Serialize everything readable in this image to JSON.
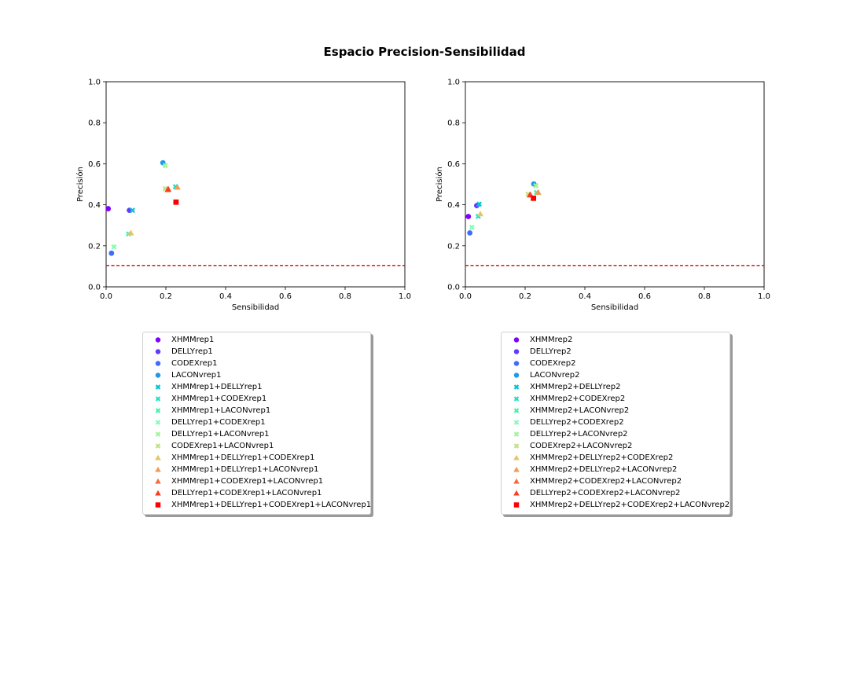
{
  "figure": {
    "title": "Espacio Precision-Sensibilidad"
  },
  "chart_data": [
    {
      "type": "scatter",
      "xlabel": "Sensibilidad",
      "ylabel": "Precisión",
      "xlim": [
        0,
        1
      ],
      "ylim": [
        0,
        1
      ],
      "xticks": [
        "0.0",
        "0.2",
        "0.4",
        "0.6",
        "0.8",
        "1.0"
      ],
      "yticks": [
        "0.0",
        "0.2",
        "0.4",
        "0.6",
        "0.8",
        "1.0"
      ],
      "grid": false,
      "baseline": {
        "y": 0.104,
        "color": "#e00000",
        "style": "dashed"
      },
      "legend_position": "below",
      "series": [
        {
          "name": "XHMMrep1",
          "marker": "circle",
          "color": "#7f00ff",
          "x": 0.007,
          "y": 0.381
        },
        {
          "name": "DELLYrep1",
          "marker": "circle",
          "color": "#5f3cfd",
          "x": 0.078,
          "y": 0.373
        },
        {
          "name": "CODEXrep1",
          "marker": "circle",
          "color": "#3f6df6",
          "x": 0.018,
          "y": 0.164
        },
        {
          "name": "LACONvrep1",
          "marker": "circle",
          "color": "#1f9ae9",
          "x": 0.19,
          "y": 0.605
        },
        {
          "name": "XHMMrep1+DELLYrep1",
          "marker": "x",
          "color": "#00c4d9",
          "x": 0.088,
          "y": 0.373
        },
        {
          "name": "XHMMrep1+CODEXrep1",
          "marker": "x",
          "color": "#22e1c6",
          "x": 0.232,
          "y": 0.488
        },
        {
          "name": "XHMMrep1+LACONvrep1",
          "marker": "x",
          "color": "#40f4ae",
          "x": 0.075,
          "y": 0.258
        },
        {
          "name": "DELLYrep1+CODEXrep1",
          "marker": "x",
          "color": "#80ffb4",
          "x": 0.026,
          "y": 0.195
        },
        {
          "name": "DELLYrep1+LACONvrep1",
          "marker": "x",
          "color": "#9ff59a",
          "x": 0.198,
          "y": 0.591
        },
        {
          "name": "CODEXrep1+LACONvrep1",
          "marker": "x",
          "color": "#c1e281",
          "x": 0.198,
          "y": 0.478
        },
        {
          "name": "XHMMrep1+DELLYrep1+CODEXrep1",
          "marker": "triangle",
          "color": "#e3c56b",
          "x": 0.083,
          "y": 0.263
        },
        {
          "name": "XHMMrep1+DELLYrep1+LACONvrep1",
          "marker": "triangle",
          "color": "#f39b55",
          "x": 0.239,
          "y": 0.486
        },
        {
          "name": "XHMMrep1+CODEXrep1+LACONvrep1",
          "marker": "triangle",
          "color": "#f86b3e",
          "x": 0.206,
          "y": 0.474
        },
        {
          "name": "DELLYrep1+CODEXrep1+LACONvrep1",
          "marker": "triangle",
          "color": "#f93c1f",
          "x": 0.208,
          "y": 0.477
        },
        {
          "name": "XHMMrep1+DELLYrep1+CODEXrep1+LACONvrep1",
          "marker": "square",
          "color": "#ff0000",
          "x": 0.234,
          "y": 0.413
        }
      ]
    },
    {
      "type": "scatter",
      "xlabel": "Sensibilidad",
      "ylabel": "Precisión",
      "xlim": [
        0,
        1
      ],
      "ylim": [
        0,
        1
      ],
      "xticks": [
        "0.0",
        "0.2",
        "0.4",
        "0.6",
        "0.8",
        "1.0"
      ],
      "yticks": [
        "0.0",
        "0.2",
        "0.4",
        "0.6",
        "0.8",
        "1.0"
      ],
      "grid": false,
      "baseline": {
        "y": 0.104,
        "color": "#e00000",
        "style": "dashed"
      },
      "legend_position": "below",
      "series": [
        {
          "name": "XHMMrep2",
          "marker": "circle",
          "color": "#7f00ff",
          "x": 0.01,
          "y": 0.343
        },
        {
          "name": "DELLYrep2",
          "marker": "circle",
          "color": "#5f3cfd",
          "x": 0.038,
          "y": 0.396
        },
        {
          "name": "CODEXrep2",
          "marker": "circle",
          "color": "#3f6df6",
          "x": 0.015,
          "y": 0.263
        },
        {
          "name": "LACONvrep2",
          "marker": "circle",
          "color": "#1f9ae9",
          "x": 0.229,
          "y": 0.502
        },
        {
          "name": "XHMMrep2+DELLYrep2",
          "marker": "x",
          "color": "#00c4d9",
          "x": 0.046,
          "y": 0.403
        },
        {
          "name": "XHMMrep2+CODEXrep2",
          "marker": "x",
          "color": "#22e1c6",
          "x": 0.043,
          "y": 0.344
        },
        {
          "name": "XHMMrep2+LACONvrep2",
          "marker": "x",
          "color": "#40f4ae",
          "x": 0.238,
          "y": 0.46
        },
        {
          "name": "DELLYrep2+CODEXrep2",
          "marker": "x",
          "color": "#80ffb4",
          "x": 0.022,
          "y": 0.29
        },
        {
          "name": "DELLYrep2+LACONvrep2",
          "marker": "x",
          "color": "#9ff59a",
          "x": 0.236,
          "y": 0.493
        },
        {
          "name": "CODEXrep2+LACONvrep2",
          "marker": "x",
          "color": "#c1e281",
          "x": 0.21,
          "y": 0.452
        },
        {
          "name": "XHMMrep2+DELLYrep2+CODEXrep2",
          "marker": "triangle",
          "color": "#e3c56b",
          "x": 0.05,
          "y": 0.356
        },
        {
          "name": "XHMMrep2+DELLYrep2+LACONvrep2",
          "marker": "triangle",
          "color": "#f39b55",
          "x": 0.244,
          "y": 0.461
        },
        {
          "name": "XHMMrep2+CODEXrep2+LACONvrep2",
          "marker": "triangle",
          "color": "#f86b3e",
          "x": 0.218,
          "y": 0.45
        },
        {
          "name": "DELLYrep2+CODEXrep2+LACONvrep2",
          "marker": "triangle",
          "color": "#f93c1f",
          "x": 0.216,
          "y": 0.448
        },
        {
          "name": "XHMMrep2+DELLYrep2+CODEXrep2+LACONvrep2",
          "marker": "square",
          "color": "#ff0000",
          "x": 0.228,
          "y": 0.432
        }
      ]
    }
  ]
}
